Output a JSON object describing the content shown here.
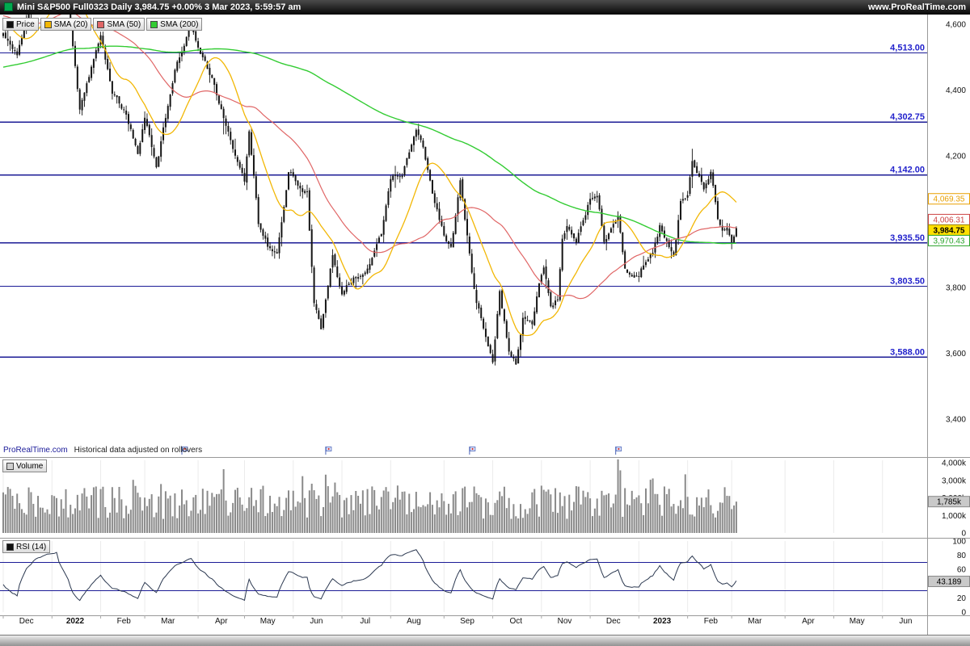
{
  "header": {
    "title": "Mini S&P500 Full0323 Daily 3,984.75 +0.00% 3 Mar 2023, 5:59:57 am",
    "site": "www.ProRealTime.com",
    "logo_color": "#00a94f"
  },
  "legend": {
    "items": [
      {
        "id": "price",
        "label": "Price",
        "color": "#111111"
      },
      {
        "id": "sma20",
        "label": "SMA (20)",
        "color": "#f2b705"
      },
      {
        "id": "sma50",
        "label": "SMA (50)",
        "color": "#e06666"
      },
      {
        "id": "sma200",
        "label": "SMA (200)",
        "color": "#33cc33"
      }
    ]
  },
  "footer": {
    "brand": "ProRealTime.com",
    "note": "Historical data adjusted on rollovers"
  },
  "volume_panel": {
    "label": "Volume",
    "swatch_color": "#cfcfcf",
    "badge": {
      "label": "1,785k",
      "value": 1785
    },
    "ticks": [
      {
        "label": "4,000k",
        "value": 4000
      },
      {
        "label": "3,000k",
        "value": 3000
      },
      {
        "label": "2,000k",
        "value": 2000
      },
      {
        "label": "1,000k",
        "value": 1000
      },
      {
        "label": "0",
        "value": 0
      }
    ]
  },
  "rsi_panel": {
    "label": "RSI (14)",
    "swatch_color": "#111111",
    "badge": {
      "label": "43.189",
      "value": 43.189
    },
    "guide_levels": [
      70,
      30
    ],
    "line_color": "#2b3850",
    "ticks": [
      {
        "label": "100",
        "value": 100
      },
      {
        "label": "80",
        "value": 80
      },
      {
        "label": "60",
        "value": 60
      },
      {
        "label": "40",
        "value": 40
      },
      {
        "label": "20",
        "value": 20
      },
      {
        "label": "0",
        "value": 0
      }
    ]
  },
  "chart_data": {
    "type": "candlestick",
    "instrument": "Mini S&P500 Full0323",
    "timeframe": "Daily",
    "last_price": 3984.75,
    "change_pct": "+0.00%",
    "timestamp": "3 Mar 2023, 5:59:57 am",
    "y_axis": {
      "ticks": [
        {
          "label": "4,600",
          "value": 4600
        },
        {
          "label": "4,400",
          "value": 4400
        },
        {
          "label": "4,200",
          "value": 4200
        },
        {
          "label": "4,000",
          "value": 4000
        },
        {
          "label": "3,800",
          "value": 3800
        },
        {
          "label": "3,600",
          "value": 3600
        },
        {
          "label": "3,400",
          "value": 3400
        }
      ]
    },
    "levels": [
      {
        "label": "4,513.00",
        "value": 4513.0
      },
      {
        "label": "4,302.75",
        "value": 4302.75
      },
      {
        "label": "4,142.00",
        "value": 4142.0
      },
      {
        "label": "3,935.50",
        "value": 3935.5
      },
      {
        "label": "3,803.50",
        "value": 3803.5
      },
      {
        "label": "3,588.00",
        "value": 3588.0
      }
    ],
    "scale_markers": [
      {
        "id": "sma20",
        "label": "4,069.35",
        "value": 4069.35
      },
      {
        "id": "sma50",
        "label": "4,006.31",
        "value": 4006.31
      },
      {
        "id": "last",
        "label": "3,984.75",
        "value": 3984.75
      },
      {
        "id": "sma200",
        "label": "3,970.43",
        "value": 3970.43
      }
    ],
    "sma_periods": [
      20,
      50,
      200
    ],
    "series": {
      "days_total": 316,
      "prehistory_anchors": [
        [
          -200,
          4240
        ],
        [
          -160,
          4360
        ],
        [
          -130,
          4470
        ],
        [
          -110,
          4350
        ],
        [
          -90,
          4440
        ],
        [
          -60,
          4600
        ],
        [
          -40,
          4690
        ],
        [
          -25,
          4590
        ],
        [
          -12,
          4660
        ],
        [
          -6,
          4540
        ]
      ],
      "price_anchors": [
        [
          0,
          4570
        ],
        [
          6,
          4510
        ],
        [
          14,
          4700
        ],
        [
          21,
          4778
        ],
        [
          23,
          4793
        ],
        [
          28,
          4670
        ],
        [
          33,
          4330
        ],
        [
          36,
          4420
        ],
        [
          42,
          4580
        ],
        [
          47,
          4390
        ],
        [
          52,
          4340
        ],
        [
          58,
          4210
        ],
        [
          61,
          4330
        ],
        [
          66,
          4170
        ],
        [
          74,
          4460
        ],
        [
          81,
          4600
        ],
        [
          84,
          4540
        ],
        [
          90,
          4440
        ],
        [
          97,
          4270
        ],
        [
          104,
          4130
        ],
        [
          106,
          4290
        ],
        [
          110,
          4000
        ],
        [
          114,
          3930
        ],
        [
          118,
          3900
        ],
        [
          123,
          4140
        ],
        [
          127,
          4110
        ],
        [
          131,
          4090
        ],
        [
          134,
          3750
        ],
        [
          137,
          3670
        ],
        [
          142,
          3910
        ],
        [
          146,
          3785
        ],
        [
          151,
          3830
        ],
        [
          158,
          3870
        ],
        [
          163,
          3960
        ],
        [
          167,
          4130
        ],
        [
          172,
          4140
        ],
        [
          178,
          4290
        ],
        [
          181,
          4220
        ],
        [
          186,
          4050
        ],
        [
          190,
          3955
        ],
        [
          193,
          3910
        ],
        [
          197,
          4110
        ],
        [
          201,
          3900
        ],
        [
          204,
          3750
        ],
        [
          208,
          3655
        ],
        [
          211,
          3585
        ],
        [
          214,
          3790
        ],
        [
          218,
          3612
        ],
        [
          221,
          3577
        ],
        [
          224,
          3720
        ],
        [
          228,
          3695
        ],
        [
          231,
          3830
        ],
        [
          233,
          3870
        ],
        [
          236,
          3740
        ],
        [
          239,
          3770
        ],
        [
          241,
          3955
        ],
        [
          243,
          3990
        ],
        [
          247,
          3945
        ],
        [
          251,
          4030
        ],
        [
          253,
          4080
        ],
        [
          256,
          4070
        ],
        [
          259,
          3940
        ],
        [
          263,
          3990
        ],
        [
          265,
          4015
        ],
        [
          268,
          3850
        ],
        [
          271,
          3820
        ],
        [
          274,
          3840
        ],
        [
          277,
          3890
        ],
        [
          280,
          3920
        ],
        [
          283,
          3995
        ],
        [
          287,
          3940
        ],
        [
          289,
          3900
        ],
        [
          292,
          4060
        ],
        [
          295,
          4077
        ],
        [
          297,
          4175
        ],
        [
          299,
          4130
        ],
        [
          302,
          4090
        ],
        [
          305,
          4145
        ],
        [
          308,
          4000
        ],
        [
          310,
          3970
        ],
        [
          312,
          3982
        ],
        [
          314,
          3951
        ],
        [
          316,
          3984.75
        ]
      ]
    },
    "months": [
      {
        "label": "Dec",
        "start_day": 0,
        "bold": false
      },
      {
        "label": "2022",
        "start_day": 21,
        "bold": true
      },
      {
        "label": "Feb",
        "start_day": 42,
        "bold": false
      },
      {
        "label": "Mar",
        "start_day": 61,
        "bold": false
      },
      {
        "label": "Apr",
        "start_day": 84,
        "bold": false
      },
      {
        "label": "May",
        "start_day": 104,
        "bold": false
      },
      {
        "label": "Jun",
        "start_day": 125,
        "bold": false
      },
      {
        "label": "Jul",
        "start_day": 146,
        "bold": false
      },
      {
        "label": "Aug",
        "start_day": 167,
        "bold": false
      },
      {
        "label": "Sep",
        "start_day": 190,
        "bold": false
      },
      {
        "label": "Oct",
        "start_day": 211,
        "bold": false
      },
      {
        "label": "Nov",
        "start_day": 232,
        "bold": false
      },
      {
        "label": "Dec",
        "start_day": 253,
        "bold": false
      },
      {
        "label": "2023",
        "start_day": 274,
        "bold": true
      },
      {
        "label": "Feb",
        "start_day": 295,
        "bold": false
      },
      {
        "label": "Mar",
        "start_day": 314,
        "bold": false
      },
      {
        "label": "Apr",
        "start_day": 337,
        "bold": false
      },
      {
        "label": "May",
        "start_day": 358,
        "bold": false
      },
      {
        "label": "Jun",
        "start_day": 379,
        "bold": false
      }
    ],
    "rollover_flag_days": [
      77,
      139,
      201,
      264
    ],
    "colors": {
      "level_line": "#1b1b96",
      "level_label": "#2222cc",
      "candle": "#151515",
      "volume_bar": "#8a8a8a"
    }
  }
}
